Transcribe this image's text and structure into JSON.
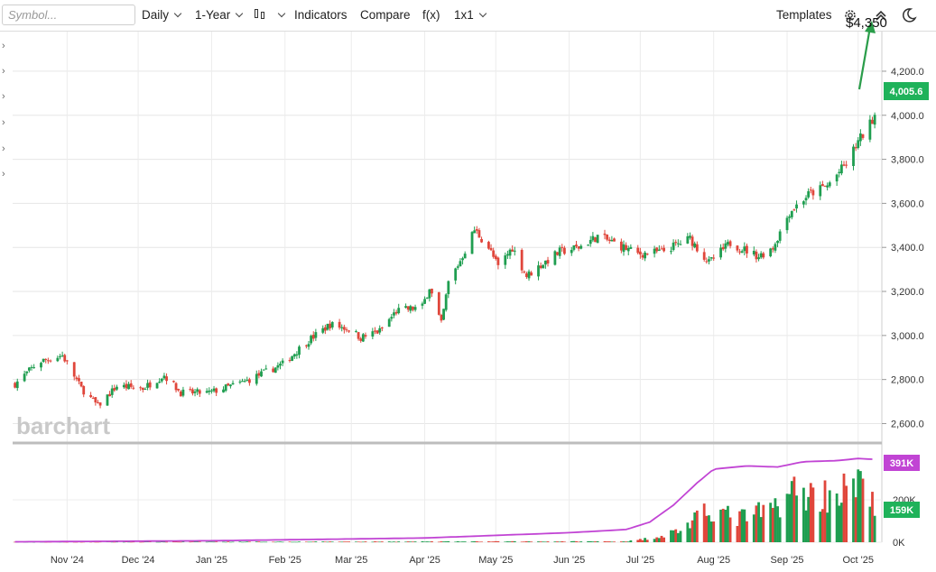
{
  "toolbar": {
    "symbol_placeholder": "Symbol...",
    "interval": "Daily",
    "period": "1-Year",
    "indicators": "Indicators",
    "compare": "Compare",
    "fx": "f(x)",
    "layout": "1x1",
    "templates": "Templates"
  },
  "annotation": {
    "text": "$4,350",
    "color": "#2a9d4a"
  },
  "watermark": "barchart",
  "colors": {
    "up": "#1f9e50",
    "down": "#e0463b",
    "volume_ma": "#c144d4",
    "last_price": "#1fb25a",
    "volume_badge": "#c144d4"
  },
  "chart_data": [
    {
      "type": "candlestick",
      "title": "",
      "x_tick_labels": [
        "Nov '24",
        "Dec '24",
        "Jan '25",
        "Feb '25",
        "Mar '25",
        "Apr '25",
        "May '25",
        "Jun '25",
        "Jul '25",
        "Aug '25",
        "Sep '25",
        "Oct '25"
      ],
      "y_tick_labels": [
        "2,600.0",
        "2,800.0",
        "3,000.0",
        "3,200.0",
        "3,400.0",
        "3,600.0",
        "3,800.0",
        "4,000.0",
        "4,200.0"
      ],
      "ylim": [
        2520,
        4380
      ],
      "last_price": "4,005.6",
      "grid": true,
      "anchors": [
        [
          "2024-10-10",
          2780
        ],
        [
          "2024-10-20",
          2880
        ],
        [
          "2024-10-30",
          2910
        ],
        [
          "2024-11-07",
          2760
        ],
        [
          "2024-11-14",
          2680
        ],
        [
          "2024-11-22",
          2770
        ],
        [
          "2024-12-03",
          2760
        ],
        [
          "2024-12-12",
          2820
        ],
        [
          "2024-12-19",
          2740
        ],
        [
          "2024-12-31",
          2740
        ],
        [
          "2025-01-15",
          2790
        ],
        [
          "2025-01-31",
          2870
        ],
        [
          "2025-02-10",
          2970
        ],
        [
          "2025-02-20",
          3050
        ],
        [
          "2025-02-28",
          3030
        ],
        [
          "2025-03-05",
          2990
        ],
        [
          "2025-03-13",
          3020
        ],
        [
          "2025-03-20",
          3110
        ],
        [
          "2025-03-31",
          3130
        ],
        [
          "2025-04-03",
          3220
        ],
        [
          "2025-04-08",
          3050
        ],
        [
          "2025-04-11",
          3240
        ],
        [
          "2025-04-16",
          3340
        ],
        [
          "2025-04-22",
          3480
        ],
        [
          "2025-04-28",
          3400
        ],
        [
          "2025-05-02",
          3310
        ],
        [
          "2025-05-08",
          3400
        ],
        [
          "2025-05-14",
          3270
        ],
        [
          "2025-05-20",
          3320
        ],
        [
          "2025-05-28",
          3380
        ],
        [
          "2025-06-05",
          3400
        ],
        [
          "2025-06-13",
          3450
        ],
        [
          "2025-06-20",
          3420
        ],
        [
          "2025-06-30",
          3370
        ],
        [
          "2025-07-10",
          3380
        ],
        [
          "2025-07-22",
          3440
        ],
        [
          "2025-07-30",
          3330
        ],
        [
          "2025-08-08",
          3420
        ],
        [
          "2025-08-20",
          3360
        ],
        [
          "2025-08-26",
          3400
        ],
        [
          "2025-09-02",
          3560
        ],
        [
          "2025-09-10",
          3640
        ],
        [
          "2025-09-18",
          3680
        ],
        [
          "2025-09-26",
          3780
        ],
        [
          "2025-10-01",
          3880
        ],
        [
          "2025-10-06",
          3960
        ],
        [
          "2025-10-08",
          4005.6
        ]
      ]
    },
    {
      "type": "bar",
      "title": "Volume",
      "y_tick_labels": [
        "0K",
        "200K"
      ],
      "ylim": [
        0,
        430000
      ],
      "last_volume": "159K",
      "moving_average_last": "391K",
      "volume_anchors": [
        [
          "2024-10-10",
          1500
        ],
        [
          "2025-06-25",
          4000
        ],
        [
          "2025-07-01",
          12000
        ],
        [
          "2025-07-10",
          30000
        ],
        [
          "2025-07-18",
          60000
        ],
        [
          "2025-07-25",
          110000
        ],
        [
          "2025-08-01",
          160000
        ],
        [
          "2025-08-10",
          110000
        ],
        [
          "2025-08-25",
          150000
        ],
        [
          "2025-09-02",
          240000
        ],
        [
          "2025-09-15",
          220000
        ],
        [
          "2025-09-30",
          260000
        ],
        [
          "2025-10-07",
          260000
        ],
        [
          "2025-10-08",
          159000
        ]
      ],
      "ma_anchors": [
        [
          "2024-10-10",
          2000
        ],
        [
          "2025-01-01",
          7000
        ],
        [
          "2025-04-01",
          20000
        ],
        [
          "2025-06-01",
          45000
        ],
        [
          "2025-06-25",
          60000
        ],
        [
          "2025-07-05",
          95000
        ],
        [
          "2025-07-15",
          175000
        ],
        [
          "2025-07-25",
          280000
        ],
        [
          "2025-08-01",
          345000
        ],
        [
          "2025-08-15",
          360000
        ],
        [
          "2025-08-28",
          355000
        ],
        [
          "2025-09-08",
          380000
        ],
        [
          "2025-09-22",
          385000
        ],
        [
          "2025-10-01",
          395000
        ],
        [
          "2025-10-08",
          391000
        ]
      ]
    }
  ]
}
